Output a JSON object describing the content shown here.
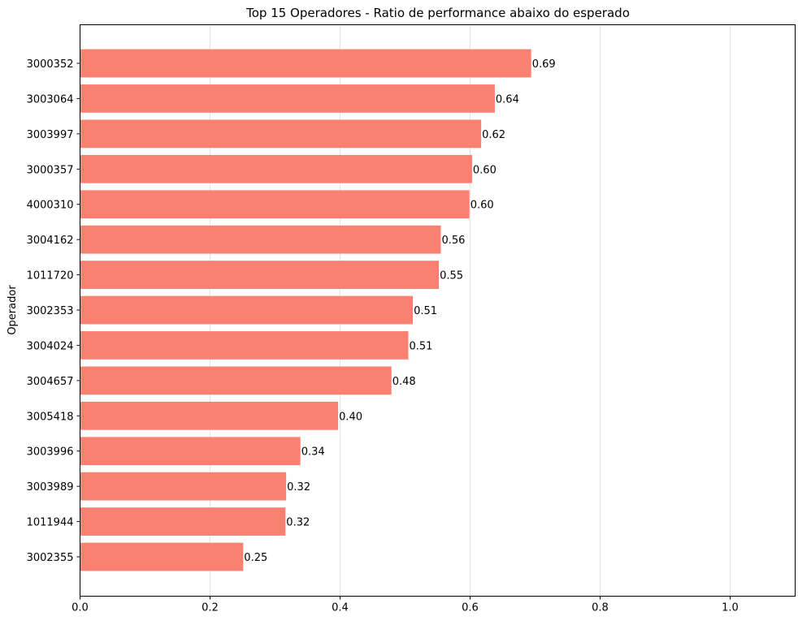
{
  "chart_data": {
    "type": "bar",
    "orientation": "horizontal",
    "title": "Top 15 Operadores - Ratio de performance abaixo do esperado",
    "xlabel": "",
    "ylabel": "Operador",
    "categories": [
      "3000352",
      "3003064",
      "3003997",
      "3000357",
      "4000310",
      "3004162",
      "1011720",
      "3002353",
      "3004024",
      "3004657",
      "3005418",
      "3003996",
      "3003989",
      "1011944",
      "3002355"
    ],
    "values": [
      0.694,
      0.638,
      0.617,
      0.603,
      0.599,
      0.555,
      0.552,
      0.512,
      0.505,
      0.479,
      0.397,
      0.339,
      0.317,
      0.316,
      0.251
    ],
    "value_labels": [
      "0.69",
      "0.64",
      "0.62",
      "0.60",
      "0.60",
      "0.56",
      "0.55",
      "0.51",
      "0.51",
      "0.48",
      "0.40",
      "0.34",
      "0.32",
      "0.32",
      "0.25"
    ],
    "xlim": [
      0,
      1.1
    ],
    "xticks": [
      0.0,
      0.2,
      0.4,
      0.6,
      0.8,
      1.0
    ],
    "xtick_labels": [
      "0.0",
      "0.2",
      "0.4",
      "0.6",
      "0.8",
      "1.0"
    ],
    "grid": "x",
    "bar_color": "#fa8072",
    "grid_color": "#e6e6e6"
  }
}
